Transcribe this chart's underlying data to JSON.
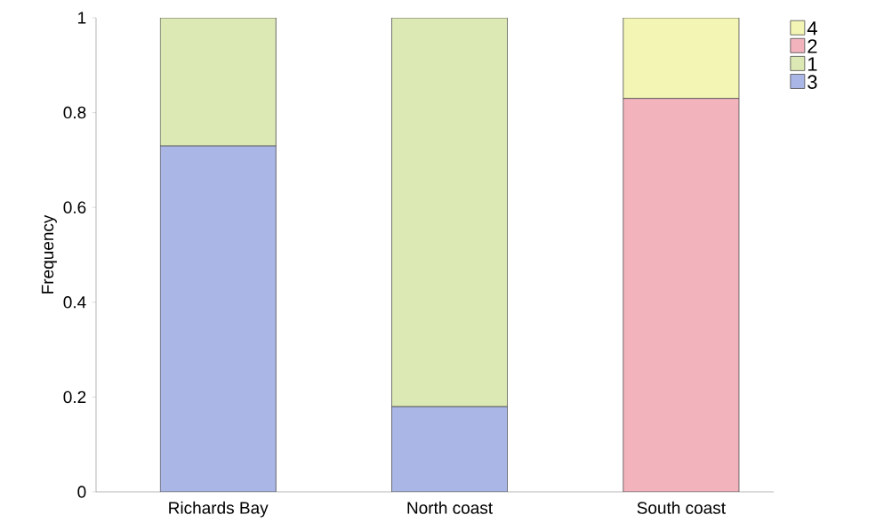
{
  "chart_data": {
    "type": "bar",
    "stacked": true,
    "ylabel": "Frequency",
    "categories": [
      "Richards Bay",
      "North coast",
      "South coast"
    ],
    "series": [
      {
        "name": "3",
        "color": "#aab6e6",
        "values": [
          0.73,
          0.18,
          null
        ]
      },
      {
        "name": "1",
        "color": "#dce9b4",
        "values": [
          0.27,
          0.82,
          null
        ]
      },
      {
        "name": "2",
        "color": "#f2b3bd",
        "values": [
          null,
          null,
          0.83
        ]
      },
      {
        "name": "4",
        "color": "#f3f5b4",
        "values": [
          null,
          null,
          0.17
        ]
      }
    ],
    "ylim": [
      0,
      1
    ],
    "yticks": [
      0,
      0.2,
      0.4,
      0.6,
      0.8,
      1
    ],
    "grid": false,
    "legend": "top right"
  }
}
